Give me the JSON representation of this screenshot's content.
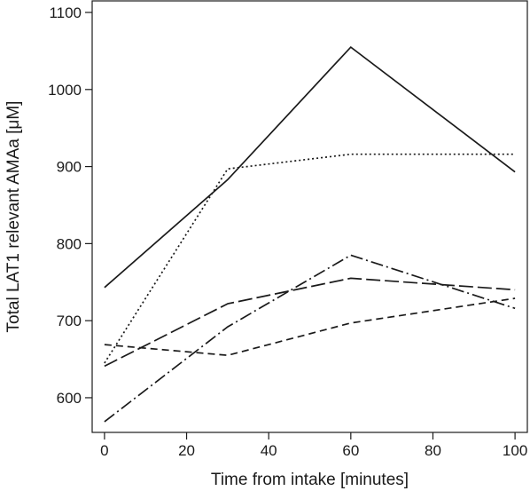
{
  "chart_data": {
    "type": "line",
    "title": "",
    "xlabel": "Time from intake [minutes]",
    "ylabel": "Total LAT1 relevant AMAa [μM]",
    "xlim": [
      -3,
      103
    ],
    "ylim": [
      555,
      1115
    ],
    "x_ticks": [
      0,
      20,
      40,
      60,
      80,
      100
    ],
    "y_ticks": [
      600,
      700,
      800,
      900,
      1000,
      1100
    ],
    "grid": false,
    "legend": "none",
    "line_color": "#1a1a1a",
    "series": [
      {
        "style": "solid",
        "x": [
          0,
          30,
          60,
          100
        ],
        "y": [
          743,
          883,
          1055,
          893
        ]
      },
      {
        "style": "dotted",
        "x": [
          0,
          30,
          60,
          100
        ],
        "y": [
          645,
          897,
          916,
          916
        ]
      },
      {
        "style": "long-dash",
        "x": [
          0,
          30,
          60,
          100
        ],
        "y": [
          641,
          722,
          755,
          740
        ]
      },
      {
        "style": "short-dash",
        "x": [
          0,
          30,
          60,
          100
        ],
        "y": [
          669,
          655,
          697,
          729
        ]
      },
      {
        "style": "dash-dot",
        "x": [
          0,
          30,
          60,
          100
        ],
        "y": [
          569,
          692,
          785,
          716
        ]
      }
    ]
  }
}
